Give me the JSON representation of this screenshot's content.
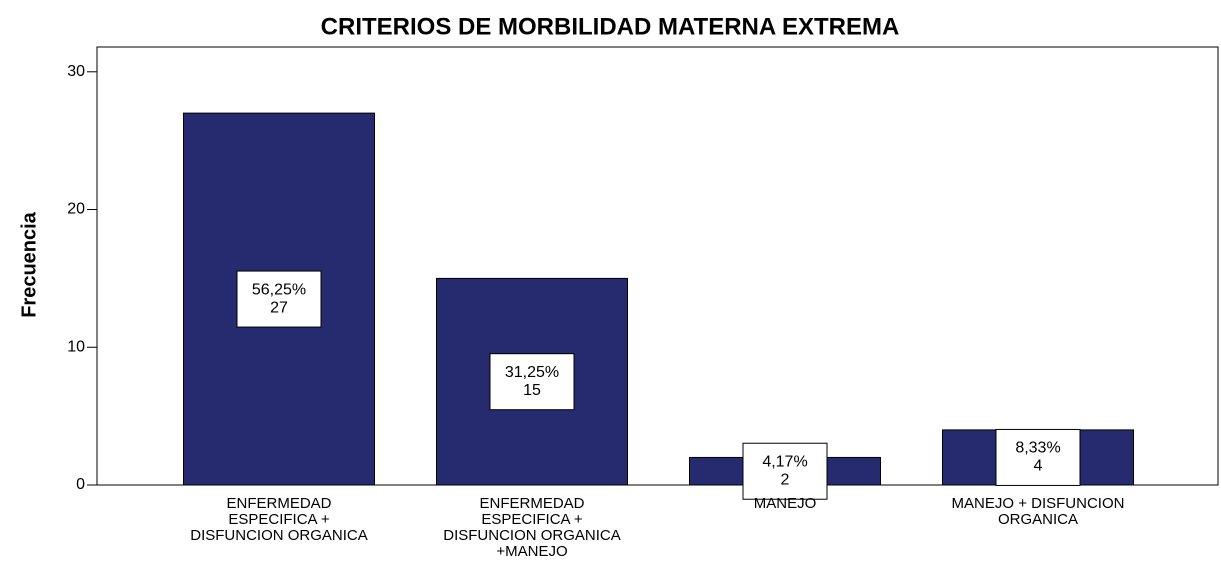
{
  "chart_data": {
    "type": "bar",
    "title": "CRITERIOS DE MORBILIDAD MATERNA EXTREMA",
    "y_label": "Frecuencia",
    "categories": [
      "ENFERMEDAD\nESPECIFICA +\nDISFUNCION ORGANICA",
      "ENFERMEDAD\nESPECIFICA +\nDISFUNCION ORGANICA\n+MANEJO",
      "MANEJO",
      "MANEJO + DISFUNCION\nORGANICA"
    ],
    "values": [
      27,
      15,
      2,
      4
    ],
    "percentages": [
      56.25,
      31.25,
      4.17,
      8.33
    ],
    "percentage_labels": [
      "56,25%",
      "31,25%",
      "4,17%",
      "8,33%"
    ],
    "color": "#262a6e",
    "ylim": [
      0,
      31.8
    ],
    "yticks": [
      0,
      10,
      20,
      30
    ],
    "grid": false
  }
}
